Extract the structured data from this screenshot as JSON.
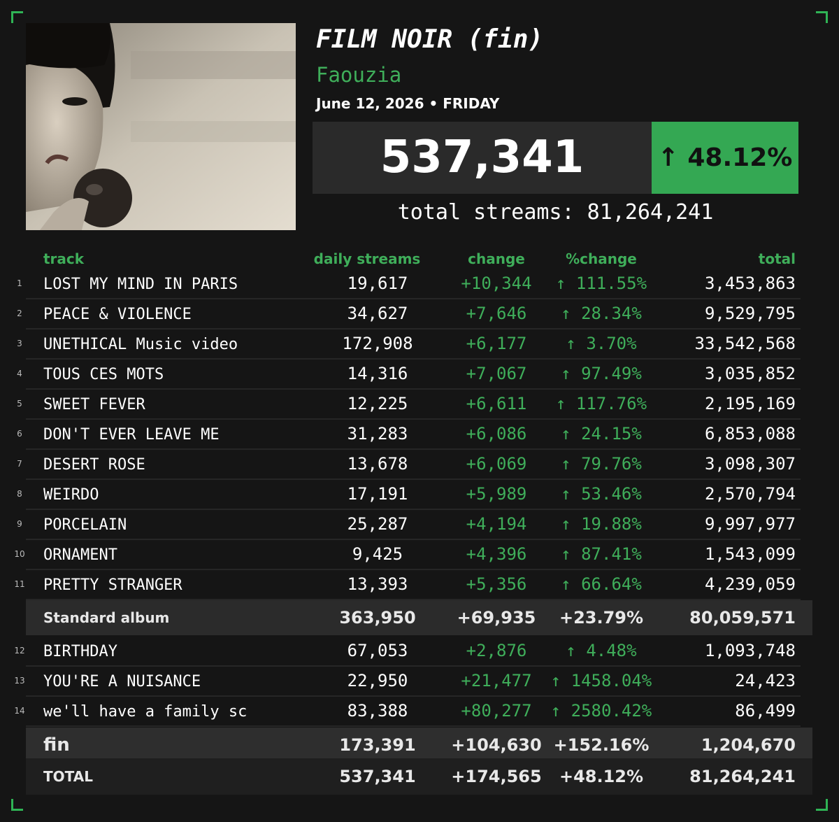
{
  "header": {
    "title": "FILM NOIR (fin)",
    "artist": "Faouzia",
    "date": "June 12, 2026 • FRIDAY",
    "daily_streams": "537,341",
    "change": "↑ 48.12%",
    "total_streams": "total streams: 81,264,241"
  },
  "table": {
    "columns": [
      "track",
      "daily streams",
      "change",
      "%change",
      "total"
    ],
    "sections": [
      {
        "rows": [
          {
            "number": 1,
            "track": "LOST MY MIND IN PARIS",
            "daily": "19,617",
            "change": "+10,344",
            "pct_change": "↑ 111.55%",
            "total": "3,453,863"
          },
          {
            "number": 2,
            "track": "PEACE & VIOLENCE",
            "daily": "34,627",
            "change": "+7,646",
            "pct_change": "↑ 28.34%",
            "total": "9,529,795"
          },
          {
            "number": 3,
            "track": "UNETHICAL Music video",
            "daily": "172,908",
            "change": "+6,177",
            "pct_change": "↑ 3.70%",
            "total": "33,542,568"
          },
          {
            "number": 4,
            "track": "TOUS CES MOTS",
            "daily": "14,316",
            "change": "+7,067",
            "pct_change": "↑ 97.49%",
            "total": "3,035,852"
          },
          {
            "number": 5,
            "track": "SWEET FEVER",
            "daily": "12,225",
            "change": "+6,611",
            "pct_change": "↑ 117.76%",
            "total": "2,195,169"
          },
          {
            "number": 6,
            "track": "DON'T EVER LEAVE ME",
            "daily": "31,283",
            "change": "+6,086",
            "pct_change": "↑ 24.15%",
            "total": "6,853,088"
          },
          {
            "number": 7,
            "track": "DESERT ROSE",
            "daily": "13,678",
            "change": "+6,069",
            "pct_change": "↑ 79.76%",
            "total": "3,098,307"
          },
          {
            "number": 8,
            "track": "WEIRDO",
            "daily": "17,191",
            "change": "+5,989",
            "pct_change": "↑ 53.46%",
            "total": "2,570,794"
          },
          {
            "number": 9,
            "track": "PORCELAIN",
            "daily": "25,287",
            "change": "+4,194",
            "pct_change": "↑ 19.88%",
            "total": "9,997,977"
          },
          {
            "number": 10,
            "track": "ORNAMENT",
            "daily": "9,425",
            "change": "+4,396",
            "pct_change": "↑ 87.41%",
            "total": "1,543,099"
          },
          {
            "number": 11,
            "track": "PRETTY STRANGER",
            "daily": "13,393",
            "change": "+5,356",
            "pct_change": "↑ 66.64%",
            "total": "4,239,059"
          }
        ],
        "subtotal": {
          "label": "Standard album",
          "daily": "363,950",
          "change": "+69,935",
          "pct_change": "+23.79%",
          "total": "80,059,571"
        }
      },
      {
        "rows": [
          {
            "number": 12,
            "track": "BIRTHDAY",
            "daily": "67,053",
            "change": "+2,876",
            "pct_change": "↑ 4.48%",
            "total": "1,093,748"
          },
          {
            "number": 13,
            "track": "YOU'RE A NUISANCE",
            "daily": "22,950",
            "change": "+21,477",
            "pct_change": "↑ 1458.04%",
            "total": "24,423"
          },
          {
            "number": 14,
            "track": "we'll have a family sc",
            "daily": "83,388",
            "change": "+80,277",
            "pct_change": "↑ 2580.42%",
            "total": "86,499"
          }
        ],
        "subtotal": {
          "label": "fin",
          "daily": "173,391",
          "change": "+104,630",
          "pct_change": "+152.16%",
          "total": "1,204,670"
        }
      }
    ],
    "grand_total": {
      "label": "TOTAL",
      "daily": "537,341",
      "change": "+174,565",
      "pct_change": "+48.12%",
      "total": "81,264,241"
    }
  }
}
